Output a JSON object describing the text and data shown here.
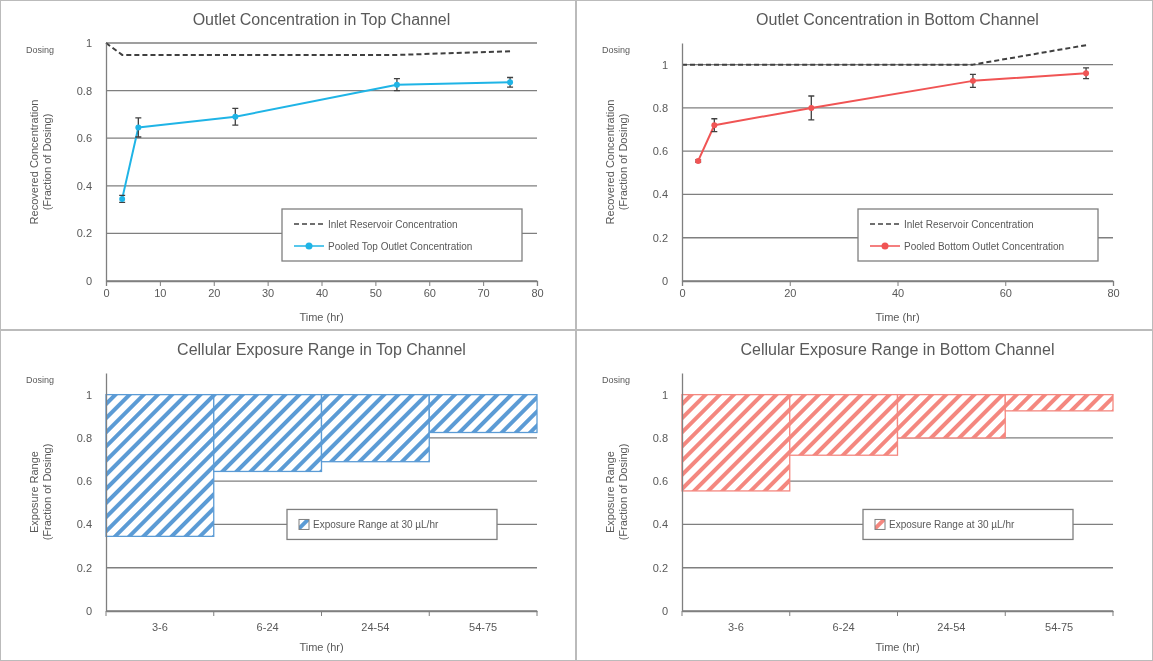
{
  "chart_data": [
    {
      "type": "line",
      "title": "Outlet Concentration in Top Channel",
      "xlabel": "Time (hr)",
      "ylabel": "Recovered Concentration\n(Fraction of Dosing)",
      "annotations": [
        "Dosing"
      ],
      "xlim": [
        0,
        80
      ],
      "xticks": [
        0,
        10,
        20,
        30,
        40,
        50,
        60,
        70,
        80
      ],
      "ylim": [
        0,
        1
      ],
      "yticks": [
        0,
        0.2,
        0.4,
        0.6,
        0.8,
        1
      ],
      "grid": "y",
      "legend": "bottom right",
      "series": [
        {
          "name": "Inlet Reservoir Concentration",
          "color": "#404040",
          "x": [
            0,
            3,
            54,
            75
          ],
          "values": [
            1,
            0.95,
            0.95,
            0.965
          ],
          "line_style": "dashed",
          "marker": "none"
        },
        {
          "name": "Pooled Top Outlet Concentration",
          "color": "#1fb4e6",
          "x": [
            3,
            6,
            24,
            54,
            75
          ],
          "values": [
            0.345,
            0.645,
            0.69,
            0.825,
            0.835
          ],
          "errors": [
            0.015,
            0.04,
            0.035,
            0.025,
            0.02
          ],
          "line_style": "solid",
          "marker": "circle"
        }
      ]
    },
    {
      "type": "line",
      "title": "Outlet Concentration in Bottom Channel",
      "xlabel": "Time (hr)",
      "ylabel": "Recovered Concentration\n(Fraction of Dosing)",
      "annotations": [
        "Dosing"
      ],
      "xlim": [
        0,
        80
      ],
      "xticks": [
        0,
        20,
        40,
        60,
        80
      ],
      "ylim": [
        0,
        1.1
      ],
      "yticks": [
        0,
        0.2,
        0.4,
        0.6,
        0.8,
        1
      ],
      "grid": "y",
      "legend": "bottom right",
      "series": [
        {
          "name": "Inlet Reservoir Concentration",
          "color": "#404040",
          "x": [
            0,
            54,
            75
          ],
          "values": [
            1,
            1,
            1.09
          ],
          "line_style": "dashed",
          "marker": "none"
        },
        {
          "name": "Pooled Bottom Outlet Concentration",
          "color": "#f05454",
          "x": [
            3,
            6,
            24,
            54,
            75
          ],
          "values": [
            0.555,
            0.72,
            0.8,
            0.925,
            0.96
          ],
          "errors": [
            0.005,
            0.03,
            0.055,
            0.03,
            0.025
          ],
          "line_style": "solid",
          "marker": "circle"
        }
      ]
    },
    {
      "type": "bar",
      "title": "Cellular Exposure Range in Top Channel",
      "xlabel": "Time (hr)",
      "ylabel": "Exposure Range\n(Fraction of Dosing)",
      "annotations": [
        "Dosing"
      ],
      "categories": [
        "3-6",
        "6-24",
        "24-54",
        "54-75"
      ],
      "ylim": [
        0,
        1.1
      ],
      "yticks": [
        0,
        0.2,
        0.4,
        0.6,
        0.8,
        1
      ],
      "grid": "y",
      "legend": "right",
      "series": [
        {
          "name": "Exposure Range at 30 µL/hr",
          "color": "#5b9bd5",
          "base": [
            0.345,
            0.645,
            0.69,
            0.825
          ],
          "values": [
            0.655,
            0.355,
            0.31,
            0.175
          ]
        }
      ]
    },
    {
      "type": "bar",
      "title": "Cellular Exposure Range in Bottom Channel",
      "xlabel": "Time (hr)",
      "ylabel": "Exposure Range\n(Fraction of Dosing)",
      "annotations": [
        "Dosing"
      ],
      "categories": [
        "3-6",
        "6-24",
        "24-54",
        "54-75"
      ],
      "ylim": [
        0,
        1.1
      ],
      "yticks": [
        0,
        0.2,
        0.4,
        0.6,
        0.8,
        1
      ],
      "grid": "y",
      "legend": "right",
      "series": [
        {
          "name": "Exposure Range at 30 µL/hr",
          "color": "#f4877f",
          "base": [
            0.555,
            0.72,
            0.8,
            0.925
          ],
          "values": [
            0.445,
            0.28,
            0.2,
            0.075
          ]
        }
      ]
    }
  ]
}
